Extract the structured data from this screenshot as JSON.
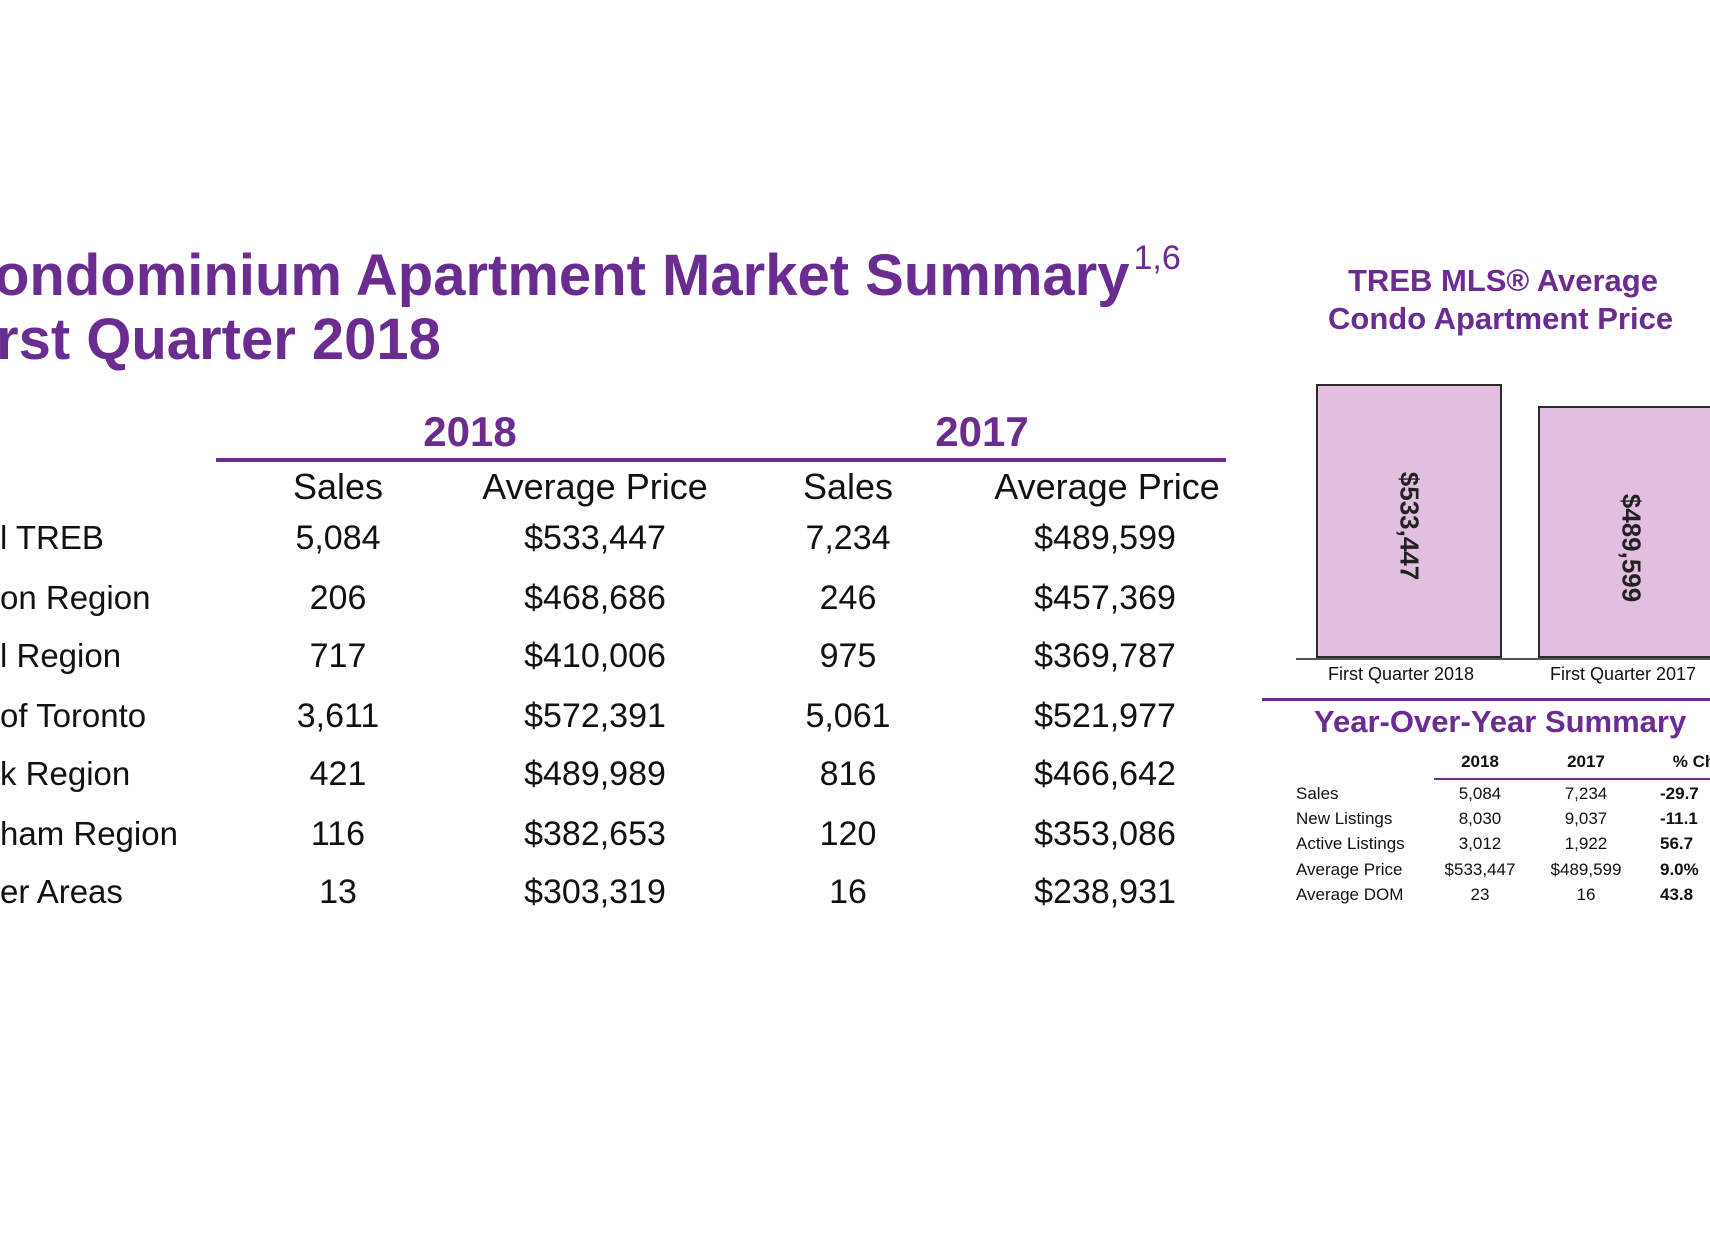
{
  "title": {
    "line1_visible": "ondominium Apartment Market Summary",
    "line1_sup": "1,6",
    "line2_visible": "rst Quarter 2018"
  },
  "table": {
    "years": [
      "2018",
      "2017"
    ],
    "column_headers": [
      "Sales",
      "Average Price",
      "Sales",
      "Average Price"
    ],
    "rows": [
      {
        "region": "l TREB",
        "sales_2018": "5,084",
        "price_2018": "$533,447",
        "sales_2017": "7,234",
        "price_2017": "$489,599"
      },
      {
        "region": "on Region",
        "sales_2018": "206",
        "price_2018": "$468,686",
        "sales_2017": "246",
        "price_2017": "$457,369"
      },
      {
        "region": "l Region",
        "sales_2018": "717",
        "price_2018": "$410,006",
        "sales_2017": "975",
        "price_2017": "$369,787"
      },
      {
        "region": "of Toronto",
        "sales_2018": "3,611",
        "price_2018": "$572,391",
        "sales_2017": "5,061",
        "price_2017": "$521,977"
      },
      {
        "region": "k Region",
        "sales_2018": "421",
        "price_2018": "$489,989",
        "sales_2017": "816",
        "price_2017": "$466,642"
      },
      {
        "region": "ham Region",
        "sales_2018": "116",
        "price_2018": "$382,653",
        "sales_2017": "120",
        "price_2017": "$353,086"
      },
      {
        "region": "er Areas",
        "sales_2018": "13",
        "price_2018": "$303,319",
        "sales_2017": "16",
        "price_2017": "$238,931"
      }
    ]
  },
  "chart_data": {
    "type": "bar",
    "title": "TREB MLS® Average Condo Apartment Price",
    "title_lines": [
      "TREB MLS® Average",
      "Condo Apartment Price"
    ],
    "categories": [
      "First Quarter 2018",
      "First Quarter 2017"
    ],
    "values": [
      533447,
      489599
    ],
    "value_labels": [
      "$533,447",
      "$489,599"
    ],
    "axis_max": 564000
  },
  "yoy": {
    "title": "Year-Over-Year Summary",
    "headers": [
      "2018",
      "2017",
      "% Ch"
    ],
    "rows": [
      {
        "label": "Sales",
        "v2018": "5,084",
        "v2017": "7,234",
        "change": "-29.7"
      },
      {
        "label": "New Listings",
        "v2018": "8,030",
        "v2017": "9,037",
        "change": "-11.1"
      },
      {
        "label": "Active Listings",
        "v2018": "3,012",
        "v2017": "1,922",
        "change": "56.7"
      },
      {
        "label": "Average Price",
        "v2018": "$533,447",
        "v2017": "$489,599",
        "change": "9.0%"
      },
      {
        "label": "Average DOM",
        "v2018": "23",
        "v2017": "16",
        "change": "43.8"
      }
    ]
  }
}
